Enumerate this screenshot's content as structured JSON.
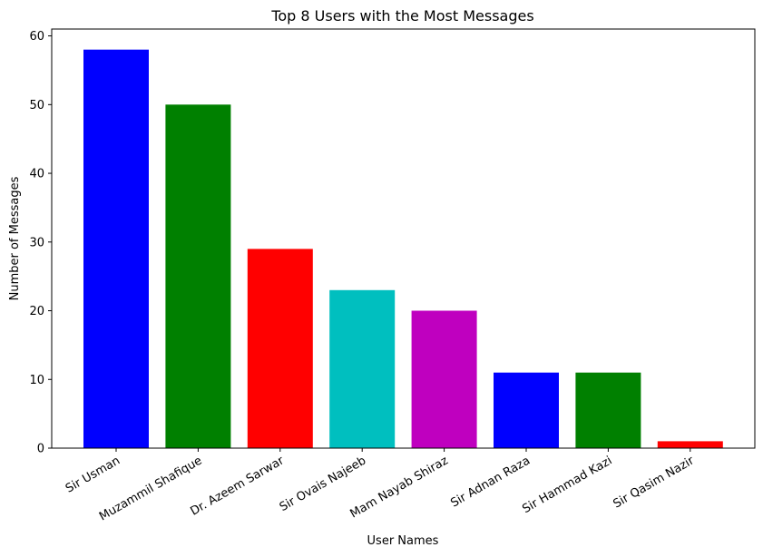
{
  "chart_data": {
    "type": "bar",
    "title": "Top 8 Users with the Most Messages",
    "xlabel": "User Names",
    "ylabel": "Number of Messages",
    "categories": [
      "Sir Usman",
      "Muzammil Shafique",
      "Dr. Azeem Sarwar",
      "Sir Ovais Najeeb",
      "Mam Nayab Shiraz",
      "Sir Adnan Raza",
      "Sir Hammad Kazi",
      "Sir Qasim Nazir"
    ],
    "values": [
      58,
      50,
      29,
      23,
      20,
      11,
      11,
      1
    ],
    "colors": [
      "#0000ff",
      "#008000",
      "#ff0000",
      "#00bfbf",
      "#bf00bf",
      "#0000ff",
      "#008000",
      "#ff0000"
    ],
    "ylim": [
      0,
      61
    ],
    "yticks": [
      0,
      10,
      20,
      30,
      40,
      50,
      60
    ],
    "grid": false,
    "legend": false
  }
}
